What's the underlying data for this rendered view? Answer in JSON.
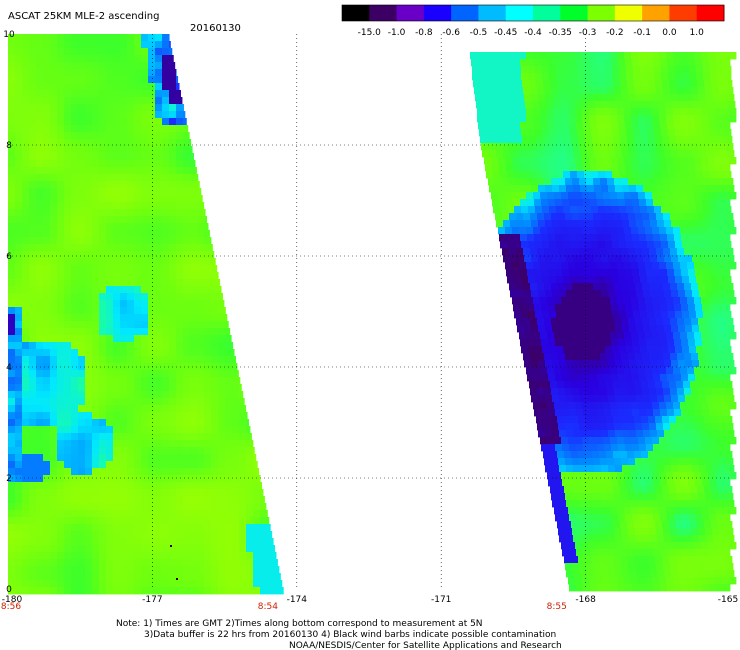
{
  "header": {
    "title": "ASCAT 25KM MLE-2 ascending",
    "date": "20160130"
  },
  "colorbar": {
    "labels": [
      "-15.0",
      "-1.0",
      "-0.8",
      "-0.6",
      "-0.5",
      "-0.45",
      "-0.4",
      "-0.35",
      "-0.3",
      "-0.2",
      "-0.1",
      "0.0",
      "1.0"
    ],
    "colors": [
      "#000000",
      "#3c0064",
      "#6a00c8",
      "#1a00ff",
      "#0064ff",
      "#00bcff",
      "#00ffff",
      "#00ff9c",
      "#00ff2a",
      "#7cff00",
      "#f0ff00",
      "#ffa200",
      "#ff3c00",
      "#ff0000"
    ]
  },
  "chart_data": {
    "type": "heatmap",
    "title": "ASCAT 25KM MLE-2 ascending",
    "subtitle": "20160130",
    "xlabel": "",
    "ylabel": "",
    "xlim": [
      -180,
      -165
    ],
    "ylim": [
      0,
      10
    ],
    "x_ticks": [
      "-180",
      "-177",
      "-174",
      "-171",
      "-168",
      "-165"
    ],
    "y_ticks": [
      "0",
      "2",
      "4",
      "6",
      "8",
      "10"
    ],
    "time_labels": [
      {
        "x": -180,
        "label": "8:56"
      },
      {
        "x": -174.6,
        "label": "8:54"
      },
      {
        "x": -168.6,
        "label": "8:55"
      }
    ],
    "grid": true,
    "swaths": [
      {
        "name": "west swath",
        "lon_range": [
          -180,
          -174.2
        ],
        "dominant_value_range": [
          -0.45,
          -0.2
        ],
        "min_value": -0.8
      },
      {
        "name": "east swath",
        "lon_range": [
          -170.9,
          -165
        ],
        "dominant_value_range": [
          -0.45,
          -0.2
        ],
        "min_value": -1.0
      }
    ]
  },
  "footer": {
    "line1": "Note: 1) Times are GMT 2)Times along bottom correspond to measurement at 5N",
    "line2": "3)Data buffer is 22 hrs from 20160130 4) Black wind barbs indicate possible contamination",
    "line3": "NOAA/NESDIS/Center for Satellite Applications and Research"
  }
}
